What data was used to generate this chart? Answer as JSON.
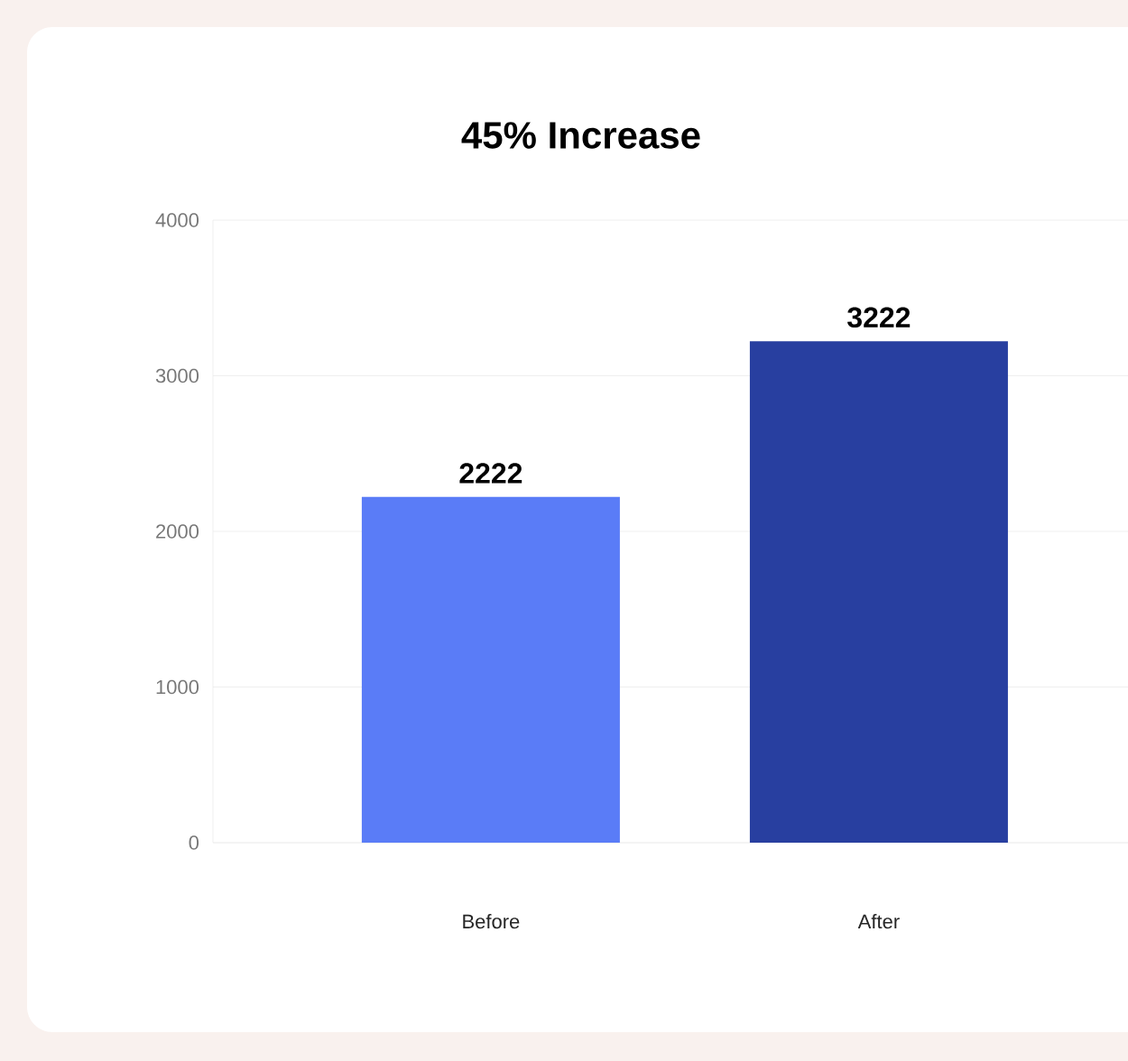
{
  "chart_data": {
    "type": "bar",
    "title": "45% Increase",
    "categories": [
      "Before",
      "After"
    ],
    "values": [
      2222,
      3222
    ],
    "colors": [
      "#5a7cf7",
      "#283fa0"
    ],
    "ylim": [
      0,
      4000
    ],
    "yticks": [
      0,
      1000,
      2000,
      3000,
      4000
    ],
    "grid": "y",
    "data_labels": true
  }
}
